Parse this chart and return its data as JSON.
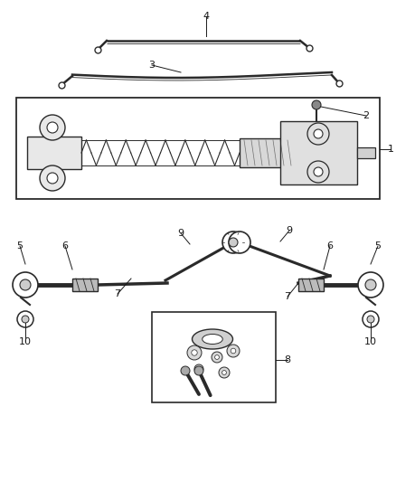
{
  "bg_color": "#ffffff",
  "line_color": "#2a2a2a",
  "label_color": "#1a1a1a",
  "font_size": 8,
  "fig_width": 4.38,
  "fig_height": 5.33,
  "dpi": 100
}
